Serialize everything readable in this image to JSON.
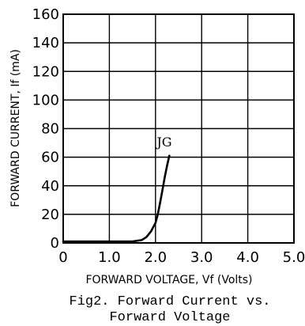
{
  "chart_data": {
    "type": "line",
    "title": "",
    "xlabel": "FORWARD VOLTAGE, Vf (Volts)",
    "ylabel": "FORWARD CURRENT, If (mA)",
    "xlim": [
      0,
      5
    ],
    "ylim": [
      0,
      160
    ],
    "x_ticks": [
      "0",
      "1.0",
      "2.0",
      "3.0",
      "4.0",
      "5.0"
    ],
    "y_ticks": [
      "0",
      "20",
      "40",
      "60",
      "80",
      "100",
      "120",
      "140",
      "160"
    ],
    "grid": true,
    "series": [
      {
        "name": "JG",
        "x": [
          0,
          0.5,
          1.0,
          1.5,
          1.7,
          1.8,
          1.9,
          2.0,
          2.05,
          2.1,
          2.15,
          2.2,
          2.25,
          2.3
        ],
        "y": [
          1,
          1,
          1,
          1,
          2,
          4,
          8,
          14,
          20,
          28,
          37,
          46,
          54,
          61
        ]
      }
    ],
    "caption": [
      "Fig2. Forward Current vs.",
      "Forward Voltage"
    ]
  }
}
